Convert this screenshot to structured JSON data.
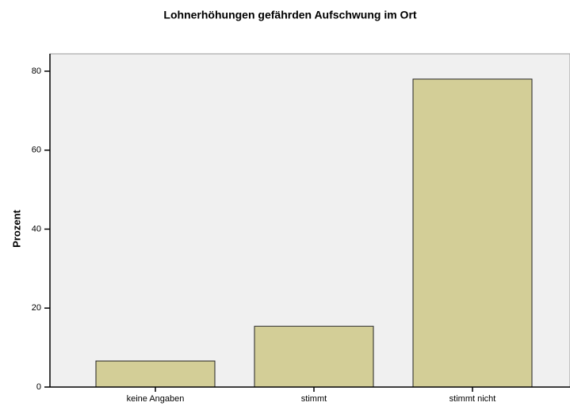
{
  "chart_data": {
    "type": "bar",
    "title": "Lohnerhöhungen gefährden Aufschwung im Ort",
    "y_label": "Prozent",
    "categories": [
      "keine Angaben",
      "stimmt",
      "stimmt nicht"
    ],
    "values": [
      6.6,
      15.4,
      78.0
    ],
    "color": "#d3ce97",
    "ylim": [
      0,
      84.4
    ],
    "yticks": [
      0,
      20,
      40,
      60,
      80
    ],
    "grid": false
  }
}
